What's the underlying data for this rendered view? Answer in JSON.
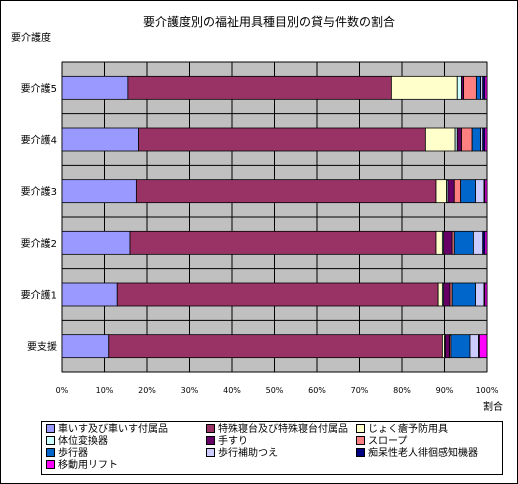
{
  "chart_data": {
    "type": "bar",
    "orientation": "horizontal",
    "stacked": "percent",
    "title": "要介護度別の福祉用具種目別の貸与件数の割合",
    "ylabel": "要介護度",
    "xlabel": "割合",
    "xlim": [
      0,
      100
    ],
    "xticks": [
      "0%",
      "10%",
      "20%",
      "30%",
      "40%",
      "50%",
      "60%",
      "70%",
      "80%",
      "90%",
      "100%"
    ],
    "grid": true,
    "legend_position": "bottom",
    "categories": [
      "要介護5",
      "要介護4",
      "要介護3",
      "要介護2",
      "要介護1",
      "要支援"
    ],
    "series": [
      {
        "name": "車いす及び車いす付属品",
        "color": "#9999ff",
        "values": [
          15.5,
          18,
          17.5,
          16,
          13,
          11
        ]
      },
      {
        "name": "特殊寝台及び特殊寝台付属品",
        "color": "#993366",
        "values": [
          62,
          67.5,
          70.5,
          72,
          75.5,
          78.5
        ]
      },
      {
        "name": "じょく瘡予防用具",
        "color": "#ffffcc",
        "values": [
          15.5,
          7,
          2.5,
          1.5,
          1,
          0.5
        ]
      },
      {
        "name": "体位変換器",
        "color": "#ccffff",
        "values": [
          1,
          0.5,
          0.3,
          0.3,
          0.3,
          0.2
        ]
      },
      {
        "name": "手すり",
        "color": "#660066",
        "values": [
          0.5,
          1,
          1.5,
          2,
          1.5,
          1
        ]
      },
      {
        "name": "スロープ",
        "color": "#ff8080",
        "values": [
          3,
          2.5,
          1.5,
          0.5,
          0.5,
          0.3
        ]
      },
      {
        "name": "歩行器",
        "color": "#0066cc",
        "values": [
          1,
          2,
          3.5,
          4.5,
          5.5,
          4.5
        ]
      },
      {
        "name": "歩行補助つえ",
        "color": "#ccccff",
        "values": [
          0.5,
          0.5,
          2,
          2.2,
          2,
          2
        ]
      },
      {
        "name": "痴呆性老人徘徊感知機器",
        "color": "#000080",
        "values": [
          0.5,
          0.5,
          0.2,
          0.5,
          0.2,
          0.2
        ]
      },
      {
        "name": "移動用リフト",
        "color": "#ff00ff",
        "values": [
          0.5,
          0.5,
          0.5,
          0.5,
          0.5,
          1.8
        ]
      }
    ]
  }
}
